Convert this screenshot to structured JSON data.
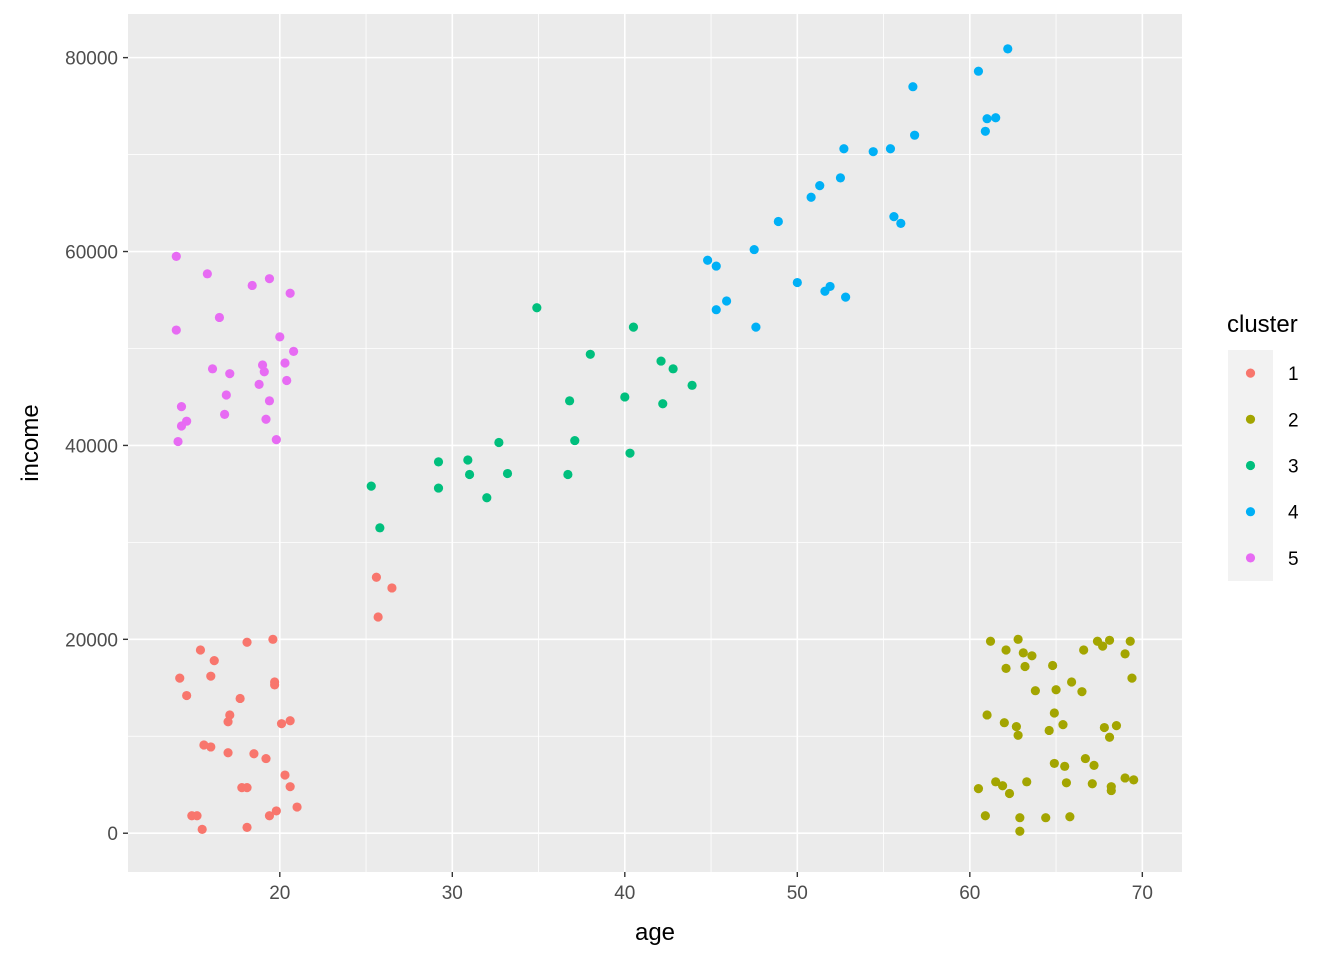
{
  "chart_data": {
    "type": "scatter",
    "title": "",
    "xlabel": "age",
    "ylabel": "income",
    "xlim": [
      11.2,
      72.3
    ],
    "ylim": [
      -4000,
      84500
    ],
    "x_ticks": [
      20,
      30,
      40,
      50,
      60,
      70
    ],
    "x_tick_labels": [
      "20",
      "30",
      "40",
      "50",
      "60",
      "70"
    ],
    "y_ticks": [
      0,
      20000,
      40000,
      60000,
      80000
    ],
    "y_tick_labels": [
      "0",
      "20000",
      "40000",
      "60000",
      "80000"
    ],
    "grid": true,
    "panel_background": "#ebebeb",
    "legend": {
      "title": "cluster",
      "position": "right"
    },
    "series": [
      {
        "name": "1",
        "color": "#f8766d",
        "points": [
          [
            14.2,
            16000
          ],
          [
            14.6,
            14200
          ],
          [
            15.4,
            18900
          ],
          [
            16.0,
            16200
          ],
          [
            16.2,
            17800
          ],
          [
            17.1,
            12200
          ],
          [
            17.0,
            11500
          ],
          [
            17.7,
            13900
          ],
          [
            18.1,
            19700
          ],
          [
            19.6,
            20000
          ],
          [
            19.7,
            15600
          ],
          [
            19.7,
            15300
          ],
          [
            20.1,
            11300
          ],
          [
            20.6,
            11600
          ],
          [
            15.6,
            9100
          ],
          [
            16.0,
            8900
          ],
          [
            17.0,
            8300
          ],
          [
            18.5,
            8200
          ],
          [
            19.2,
            7700
          ],
          [
            20.3,
            6000
          ],
          [
            17.8,
            4700
          ],
          [
            18.1,
            4700
          ],
          [
            20.6,
            4800
          ],
          [
            14.9,
            1800
          ],
          [
            15.2,
            1800
          ],
          [
            15.5,
            400
          ],
          [
            18.1,
            600
          ],
          [
            19.4,
            1800
          ],
          [
            19.8,
            2300
          ],
          [
            21.0,
            2700
          ],
          [
            25.6,
            26400
          ],
          [
            26.5,
            25300
          ],
          [
            25.7,
            22300
          ]
        ]
      },
      {
        "name": "2",
        "color": "#a3a500",
        "points": [
          [
            61.2,
            19800
          ],
          [
            62.8,
            20000
          ],
          [
            62.1,
            18900
          ],
          [
            63.1,
            18600
          ],
          [
            63.6,
            18300
          ],
          [
            62.1,
            17000
          ],
          [
            63.2,
            17200
          ],
          [
            64.8,
            17300
          ],
          [
            61.0,
            12200
          ],
          [
            62.0,
            11400
          ],
          [
            62.7,
            11000
          ],
          [
            62.8,
            10100
          ],
          [
            63.8,
            14700
          ],
          [
            65.0,
            14800
          ],
          [
            65.4,
            11200
          ],
          [
            64.6,
            10600
          ],
          [
            64.9,
            12400
          ],
          [
            65.9,
            15600
          ],
          [
            66.6,
            18900
          ],
          [
            67.4,
            19800
          ],
          [
            67.7,
            19300
          ],
          [
            68.1,
            19900
          ],
          [
            69.0,
            18500
          ],
          [
            69.3,
            19800
          ],
          [
            66.5,
            14600
          ],
          [
            67.8,
            10900
          ],
          [
            68.5,
            11100
          ],
          [
            68.1,
            9900
          ],
          [
            69.4,
            16000
          ],
          [
            64.9,
            7200
          ],
          [
            65.5,
            6900
          ],
          [
            66.7,
            7700
          ],
          [
            67.2,
            7000
          ],
          [
            65.6,
            5200
          ],
          [
            67.1,
            5100
          ],
          [
            68.2,
            4800
          ],
          [
            68.2,
            4400
          ],
          [
            69.0,
            5700
          ],
          [
            69.5,
            5500
          ],
          [
            60.5,
            4600
          ],
          [
            61.5,
            5300
          ],
          [
            61.9,
            4900
          ],
          [
            62.3,
            4100
          ],
          [
            63.3,
            5300
          ],
          [
            60.9,
            1800
          ],
          [
            62.9,
            1600
          ],
          [
            62.9,
            200
          ],
          [
            64.4,
            1600
          ],
          [
            65.8,
            1700
          ]
        ]
      },
      {
        "name": "3",
        "color": "#00bf7d",
        "points": [
          [
            25.3,
            35800
          ],
          [
            25.8,
            31500
          ],
          [
            29.2,
            38300
          ],
          [
            29.2,
            35600
          ],
          [
            30.9,
            38500
          ],
          [
            31.0,
            37000
          ],
          [
            32.0,
            34600
          ],
          [
            32.7,
            40300
          ],
          [
            33.2,
            37100
          ],
          [
            34.9,
            54200
          ],
          [
            36.7,
            37000
          ],
          [
            36.8,
            44600
          ],
          [
            37.1,
            40500
          ],
          [
            38.0,
            49400
          ],
          [
            40.0,
            45000
          ],
          [
            40.3,
            39200
          ],
          [
            40.5,
            52200
          ],
          [
            42.1,
            48700
          ],
          [
            42.2,
            44300
          ],
          [
            42.8,
            47900
          ],
          [
            43.9,
            46200
          ]
        ]
      },
      {
        "name": "4",
        "color": "#00b0f6",
        "points": [
          [
            44.8,
            59100
          ],
          [
            45.3,
            58500
          ],
          [
            45.3,
            54000
          ],
          [
            45.9,
            54900
          ],
          [
            47.5,
            60200
          ],
          [
            47.6,
            52200
          ],
          [
            48.9,
            63100
          ],
          [
            50.0,
            56800
          ],
          [
            50.8,
            65600
          ],
          [
            51.3,
            66800
          ],
          [
            51.6,
            55900
          ],
          [
            51.9,
            56400
          ],
          [
            52.5,
            67600
          ],
          [
            52.7,
            70600
          ],
          [
            52.8,
            55300
          ],
          [
            54.4,
            70300
          ],
          [
            55.4,
            70600
          ],
          [
            55.6,
            63600
          ],
          [
            56.0,
            62900
          ],
          [
            56.7,
            77000
          ],
          [
            56.8,
            72000
          ],
          [
            60.5,
            78600
          ],
          [
            60.9,
            72400
          ],
          [
            61.0,
            73700
          ],
          [
            61.5,
            73800
          ],
          [
            62.2,
            80900
          ]
        ]
      },
      {
        "name": "5",
        "color": "#e76bf3",
        "points": [
          [
            14.0,
            59500
          ],
          [
            14.0,
            51900
          ],
          [
            14.1,
            40400
          ],
          [
            14.3,
            44000
          ],
          [
            14.3,
            42000
          ],
          [
            14.6,
            42500
          ],
          [
            15.8,
            57700
          ],
          [
            16.1,
            47900
          ],
          [
            16.5,
            53200
          ],
          [
            16.9,
            45200
          ],
          [
            16.8,
            43200
          ],
          [
            17.1,
            47400
          ],
          [
            18.4,
            56500
          ],
          [
            18.8,
            46300
          ],
          [
            19.0,
            48300
          ],
          [
            19.1,
            47600
          ],
          [
            19.2,
            42700
          ],
          [
            19.4,
            44600
          ],
          [
            19.4,
            57200
          ],
          [
            19.8,
            40600
          ],
          [
            20.0,
            51200
          ],
          [
            20.3,
            48500
          ],
          [
            20.4,
            46700
          ],
          [
            20.6,
            55700
          ],
          [
            20.8,
            49700
          ]
        ]
      }
    ]
  }
}
